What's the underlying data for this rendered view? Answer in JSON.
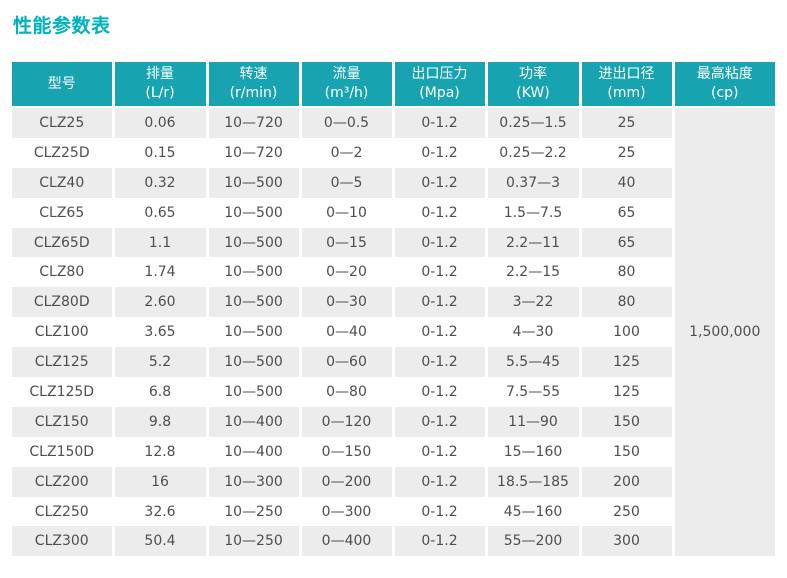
{
  "page": {
    "title": "性能参数表"
  },
  "colors": {
    "accent_title": "#00b2bd",
    "header_bg": "#17a4b0",
    "header_text": "#ffffff",
    "row_alt_bg": "#ececec",
    "cell_text": "#4e4e4e"
  },
  "table": {
    "columns": [
      {
        "key": "model",
        "label": "型号",
        "unit": ""
      },
      {
        "key": "displacement",
        "label": "排量",
        "unit": "(L/r)"
      },
      {
        "key": "speed",
        "label": "转速",
        "unit": "(r/min)"
      },
      {
        "key": "flow",
        "label": "流量",
        "unit": "(m³/h)"
      },
      {
        "key": "outlet-pressure",
        "label": "出口压力",
        "unit": "(Mpa)"
      },
      {
        "key": "power",
        "label": "功率",
        "unit": "(KW)"
      },
      {
        "key": "port-diameter",
        "label": "进出口径",
        "unit": "(mm)"
      },
      {
        "key": "max-viscosity",
        "label": "最高粘度",
        "unit": "(cp)"
      }
    ],
    "max_viscosity_value": "1,500,000",
    "rows": [
      [
        "CLZ25",
        "0.06",
        "10—720",
        "0—0.5",
        "0-1.2",
        "0.25—1.5",
        "25"
      ],
      [
        "CLZ25D",
        "0.15",
        "10—720",
        "0—2",
        "0-1.2",
        "0.25—2.2",
        "25"
      ],
      [
        "CLZ40",
        "0.32",
        "10—500",
        "0—5",
        "0-1.2",
        "0.37—3",
        "40"
      ],
      [
        "CLZ65",
        "0.65",
        "10—500",
        "0—10",
        "0-1.2",
        "1.5—7.5",
        "65"
      ],
      [
        "CLZ65D",
        "1.1",
        "10—500",
        "0—15",
        "0-1.2",
        "2.2—11",
        "65"
      ],
      [
        "CLZ80",
        "1.74",
        "10—500",
        "0—20",
        "0-1.2",
        "2.2—15",
        "80"
      ],
      [
        "CLZ80D",
        "2.60",
        "10—500",
        "0—30",
        "0-1.2",
        "3—22",
        "80"
      ],
      [
        "CLZ100",
        "3.65",
        "10—500",
        "0—40",
        "0-1.2",
        "4—30",
        "100"
      ],
      [
        "CLZ125",
        "5.2",
        "10—500",
        "0—60",
        "0-1.2",
        "5.5—45",
        "125"
      ],
      [
        "CLZ125D",
        "6.8",
        "10—500",
        "0—80",
        "0-1.2",
        "7.5—55",
        "125"
      ],
      [
        "CLZ150",
        "9.8",
        "10—400",
        "0—120",
        "0-1.2",
        "11—90",
        "150"
      ],
      [
        "CLZ150D",
        "12.8",
        "10—400",
        "0—150",
        "0-1.2",
        "15—160",
        "150"
      ],
      [
        "CLZ200",
        "16",
        "10—300",
        "0—200",
        "0-1.2",
        "18.5—185",
        "200"
      ],
      [
        "CLZ250",
        "32.6",
        "10—250",
        "0—300",
        "0-1.2",
        "45—160",
        "250"
      ],
      [
        "CLZ300",
        "50.4",
        "10—250",
        "0—400",
        "0-1.2",
        "55—200",
        "300"
      ]
    ]
  }
}
